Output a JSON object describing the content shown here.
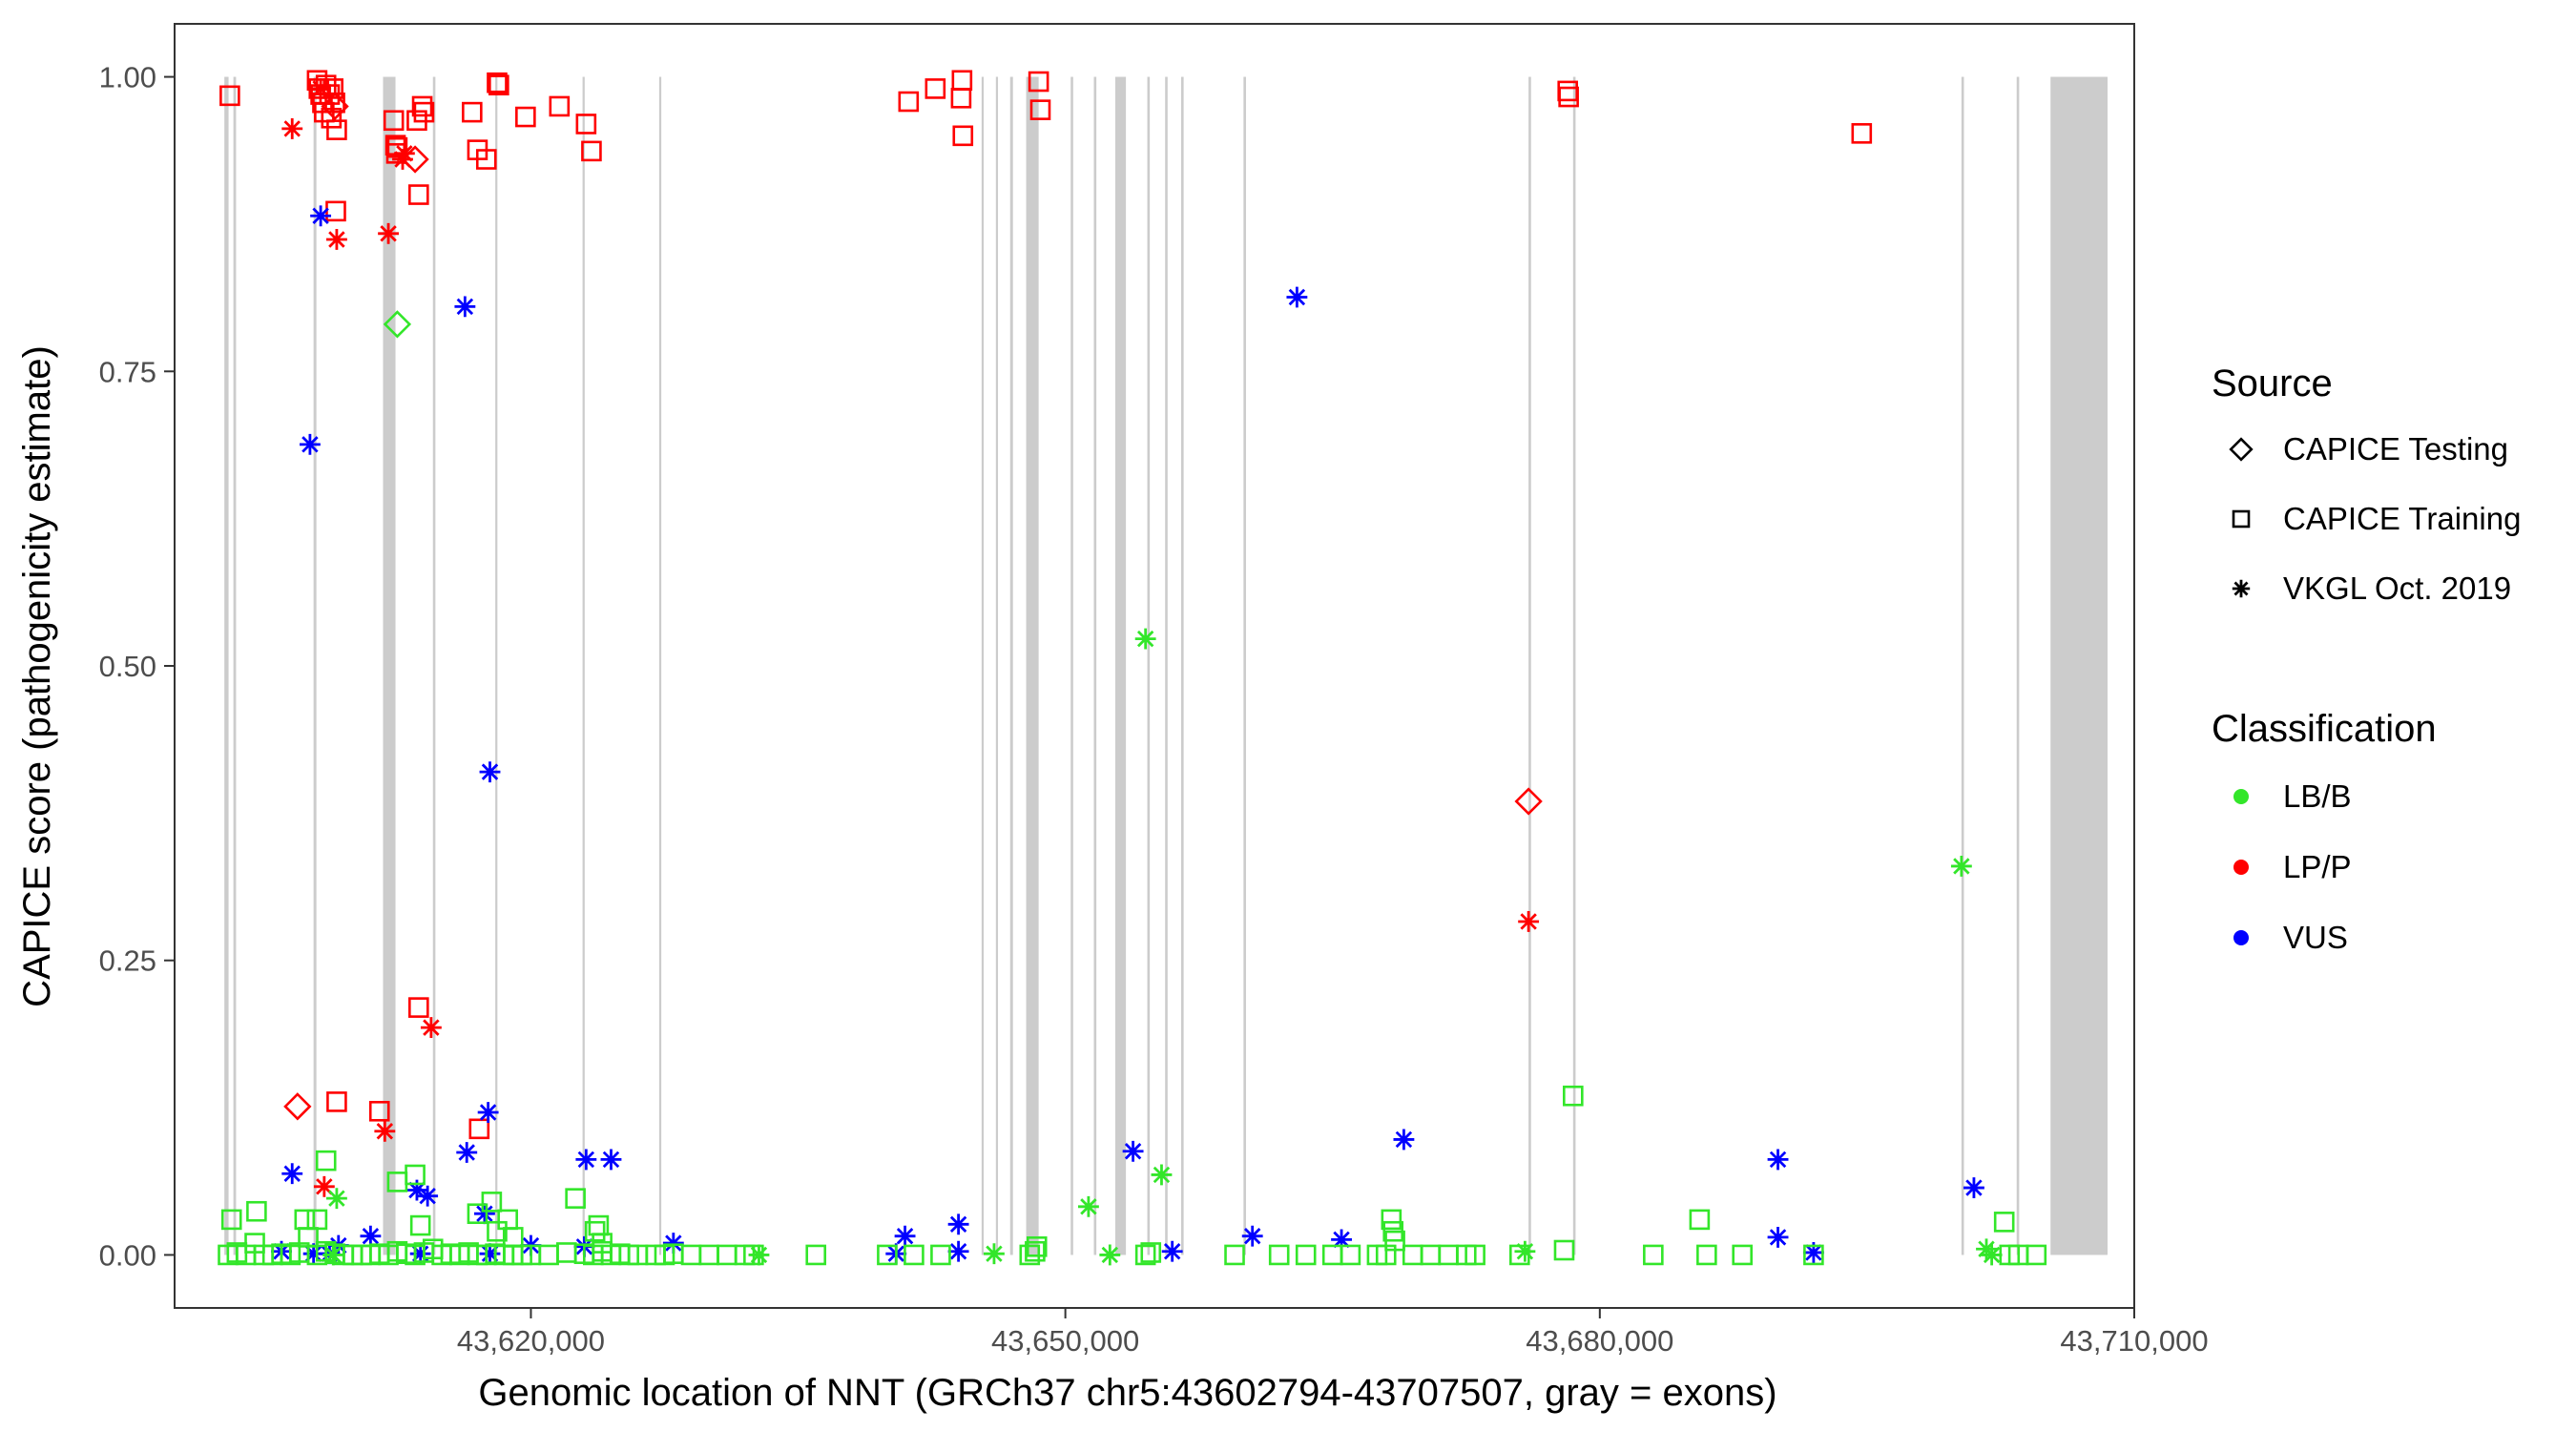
{
  "chart_data": {
    "type": "scatter",
    "xlabel": "Genomic location of NNT (GRCh37 chr5:43602794-43707507, gray = exons)",
    "ylabel": "CAPICE score (pathogenicity estimate)",
    "xlim": [
      43600000,
      43710000
    ],
    "ylim": [
      -0.045,
      1.045
    ],
    "x_ticks": [
      43620000,
      43650000,
      43680000,
      43710000
    ],
    "x_tick_labels": [
      "43,620,000",
      "43,650,000",
      "43,680,000",
      "43,710,000"
    ],
    "y_ticks": [
      0.0,
      0.25,
      0.5,
      0.75,
      1.0
    ],
    "y_tick_labels": [
      "0.00",
      "0.25",
      "0.50",
      "0.75",
      "1.00"
    ],
    "grid": false,
    "exons": [
      [
        43602794,
        43603030
      ],
      [
        43603300,
        43603450
      ],
      [
        43607800,
        43607960
      ],
      [
        43611700,
        43612400
      ],
      [
        43614500,
        43614640
      ],
      [
        43618000,
        43618120
      ],
      [
        43622900,
        43623020
      ],
      [
        43627200,
        43627320
      ],
      [
        43645300,
        43645400
      ],
      [
        43646100,
        43646200
      ],
      [
        43646900,
        43647060
      ],
      [
        43647800,
        43648500
      ],
      [
        43650300,
        43650440
      ],
      [
        43651600,
        43651740
      ],
      [
        43652800,
        43653400
      ],
      [
        43654600,
        43654740
      ],
      [
        43655600,
        43655740
      ],
      [
        43656500,
        43656640
      ],
      [
        43660000,
        43660140
      ],
      [
        43676000,
        43676140
      ],
      [
        43678500,
        43678640
      ],
      [
        43700300,
        43700440
      ],
      [
        43703400,
        43703540
      ],
      [
        43705300,
        43708500
      ]
    ],
    "legend": {
      "position": "right",
      "source_title": "Source",
      "source_items": [
        {
          "label": "CAPICE Testing",
          "shape": "diamond"
        },
        {
          "label": "CAPICE Training",
          "shape": "square"
        },
        {
          "label": "VKGL Oct. 2019",
          "shape": "asterisk"
        }
      ],
      "class_title": "Classification",
      "class_items": [
        {
          "label": "LB/B",
          "color": "#33e62a"
        },
        {
          "label": "LP/P",
          "color": "#ff0000"
        },
        {
          "label": "VUS",
          "color": "#0000ff"
        }
      ]
    },
    "colors": {
      "LB/B": "#33e62a",
      "LP/P": "#ff0000",
      "VUS": "#0000ff",
      "exon": "#cccccc"
    },
    "series": [
      {
        "source": "CAPICE Training",
        "classification": "LP/P",
        "x": [
          43603100,
          43608000,
          43608100,
          43608200,
          43608300,
          43608400,
          43608500,
          43608900,
          43609000,
          43609100,
          43608800,
          43608700,
          43609050,
          43612300,
          43612400,
          43612450,
          43612500,
          43613600,
          43613700,
          43613900,
          43614000,
          43616700,
          43617000,
          43617500,
          43618100,
          43618200,
          43619700,
          43621600,
          43623100,
          43623400,
          43641200,
          43642700,
          43644200,
          43644150,
          43644250,
          43648500,
          43648600,
          43678200,
          43678250,
          43694700,
          43613700,
          43609100,
          43611500,
          43617100
        ],
        "y": [
          0.984,
          0.997,
          0.99,
          0.985,
          0.978,
          0.97,
          0.993,
          0.99,
          0.978,
          0.955,
          0.965,
          0.985,
          0.886,
          0.963,
          0.942,
          0.935,
          0.94,
          0.963,
          0.9,
          0.975,
          0.97,
          0.97,
          0.938,
          0.93,
          0.995,
          0.993,
          0.966,
          0.975,
          0.96,
          0.937,
          0.979,
          0.99,
          0.997,
          0.982,
          0.95,
          0.996,
          0.972,
          0.988,
          0.983,
          0.952,
          0.21,
          0.13,
          0.122,
          0.107
        ]
      },
      {
        "source": "VKGL Oct. 2019",
        "classification": "LP/P",
        "x": [
          43606600,
          43608200,
          43609100,
          43612000,
          43612800,
          43612900,
          43614400,
          43608400,
          43611800,
          43676000
        ],
        "y": [
          0.956,
          0.99,
          0.862,
          0.867,
          0.93,
          0.935,
          0.193,
          0.058,
          0.105,
          0.283
        ]
      },
      {
        "source": "CAPICE Testing",
        "classification": "LP/P",
        "x": [
          43609000,
          43613500,
          43606900,
          43676000
        ],
        "y": [
          0.975,
          0.93,
          0.126,
          0.385
        ]
      },
      {
        "source": "CAPICE Testing",
        "classification": "LB/B",
        "x": [
          43612500
        ],
        "y": [
          0.79
        ]
      },
      {
        "source": "VKGL Oct. 2019",
        "classification": "VUS",
        "x": [
          43608200,
          43616300,
          43607600,
          43617700,
          43663000,
          43669000,
          43606600,
          43616400,
          43617600,
          43613600,
          43614200,
          43617400,
          43623100,
          43624500,
          43653800,
          43690000,
          43701000,
          43641000,
          43644000,
          43606000,
          43607800,
          43609200,
          43611000,
          43613800,
          43617700,
          43620000,
          43623000,
          43628000,
          43640500,
          43644000,
          43656000,
          43660500,
          43665500,
          43690000,
          43692000,
          43608700
        ],
        "y": [
          0.882,
          0.805,
          0.688,
          0.41,
          0.813,
          0.098,
          0.069,
          0.087,
          0.121,
          0.055,
          0.05,
          0.035,
          0.081,
          0.081,
          0.088,
          0.081,
          0.057,
          0.016,
          0.026,
          0.003,
          0.001,
          0.008,
          0.016,
          0.001,
          0.001,
          0.008,
          0.007,
          0.01,
          0.001,
          0.003,
          0.003,
          0.016,
          0.013,
          0.015,
          0.002,
          0.001
        ]
      },
      {
        "source": "VKGL Oct. 2019",
        "classification": "LB/B",
        "x": [
          43654500,
          43655400,
          43700300,
          43651300,
          43609100,
          43646000,
          43652500,
          43675800,
          43701700,
          43702000,
          43608900,
          43632800
        ],
        "y": [
          0.523,
          0.068,
          0.33,
          0.041,
          0.048,
          0.001,
          0.0,
          0.003,
          0.005,
          0.0,
          0.0,
          0.0
        ]
      },
      {
        "source": "CAPICE Training",
        "classification": "LB/B",
        "x": [
          43603200,
          43604600,
          43608500,
          43612500,
          43613500,
          43608000,
          43607300,
          43613800,
          43617800,
          43618100,
          43622500,
          43623600,
          43623800,
          43678500,
          43668300,
          43668400,
          43668500,
          43685600,
          43702700,
          43617000,
          43618700,
          43619000,
          43624000,
          43648400,
          43654800,
          43603000,
          43603500,
          43604000,
          43604500,
          43605000,
          43605500,
          43606000,
          43606500,
          43607000,
          43607500,
          43608000,
          43608500,
          43609000,
          43609500,
          43610000,
          43610500,
          43611000,
          43611500,
          43612000,
          43612500,
          43613000,
          43613500,
          43614000,
          43614500,
          43615000,
          43615500,
          43616000,
          43616500,
          43617000,
          43617500,
          43618000,
          43618500,
          43619000,
          43619500,
          43620000,
          43621000,
          43622000,
          43623000,
          43623500,
          43624000,
          43624500,
          43625000,
          43625500,
          43626000,
          43627000,
          43627500,
          43628000,
          43629000,
          43630000,
          43631000,
          43632000,
          43632500,
          43636000,
          43640000,
          43641500,
          43643000,
          43648000,
          43648300,
          43654500,
          43659500,
          43662000,
          43663500,
          43665000,
          43666000,
          43667500,
          43668000,
          43669500,
          43670500,
          43671500,
          43672500,
          43673000,
          43675500,
          43678000,
          43683000,
          43686000,
          43688000,
          43692000,
          43703000,
          43703500,
          43704500
        ],
        "y": [
          0.03,
          0.037,
          0.08,
          0.062,
          0.068,
          0.03,
          0.03,
          0.025,
          0.045,
          0.02,
          0.048,
          0.02,
          0.025,
          0.135,
          0.03,
          0.02,
          0.012,
          0.03,
          0.028,
          0.035,
          0.03,
          0.015,
          0.01,
          0.007,
          0.002,
          0.0,
          0.002,
          0.0,
          0.01,
          0.0,
          0.0,
          0.001,
          0.0,
          0.002,
          0.015,
          0.0,
          0.003,
          0.001,
          0.0,
          0.0,
          0.0,
          0.0,
          0.001,
          0.0,
          0.003,
          0.001,
          0.0,
          0.002,
          0.005,
          0.0,
          0.001,
          0.0,
          0.002,
          0.0,
          0.0,
          0.001,
          0.0,
          0.0,
          0.0,
          0.0,
          0.0,
          0.002,
          0.001,
          0.0,
          0.003,
          0.0,
          0.001,
          0.0,
          0.0,
          0.0,
          0.0,
          0.001,
          0.0,
          0.0,
          0.0,
          0.0,
          0.0,
          0.0,
          0.0,
          0.0,
          0.0,
          0.0,
          0.003,
          0.0,
          0.0,
          0.0,
          0.0,
          0.0,
          0.0,
          0.0,
          0.0,
          0.0,
          0.0,
          0.0,
          0.0,
          0.0,
          0.0,
          0.004,
          0.0,
          0.0,
          0.0,
          0.0,
          0.0,
          0.0,
          0.0
        ]
      }
    ]
  }
}
